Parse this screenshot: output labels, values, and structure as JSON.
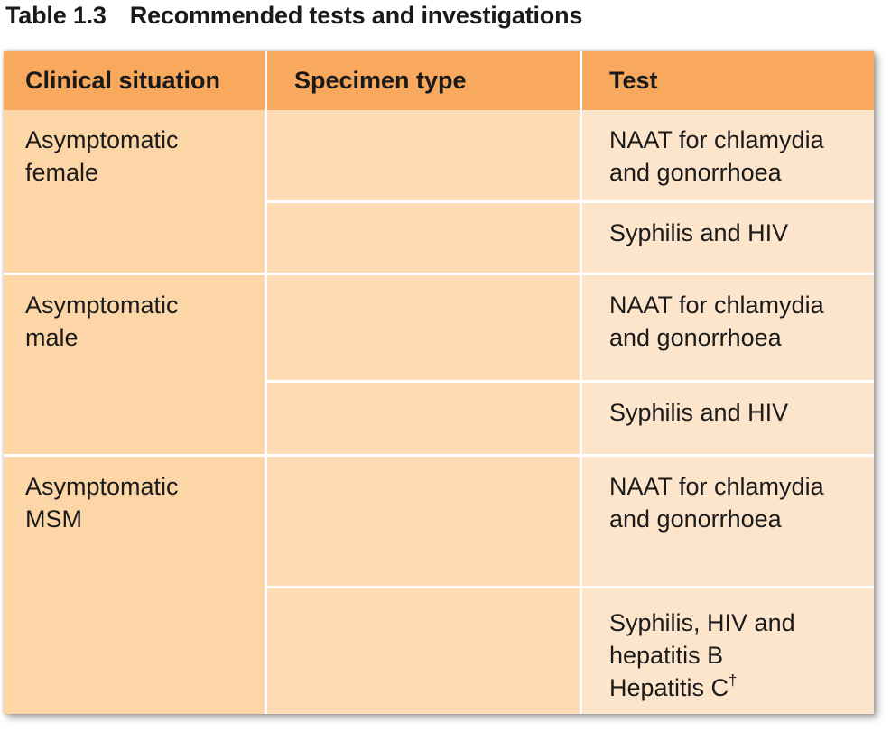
{
  "caption": {
    "number": "Table 1.3",
    "title": "Recommended tests and investigations"
  },
  "headers": {
    "clinical": "Clinical situation",
    "specimen": "Specimen type",
    "test": "Test"
  },
  "groups": [
    {
      "clinical_line1": "Asymptomatic",
      "clinical_line2": "female",
      "rows": [
        {
          "specimen": "",
          "test_line1": "NAAT for chlamydia",
          "test_line2": "and gonorrhoea"
        },
        {
          "specimen": "",
          "test_line1": "Syphilis and HIV"
        }
      ]
    },
    {
      "clinical_line1": "Asymptomatic",
      "clinical_line2": "male",
      "rows": [
        {
          "specimen": "",
          "test_line1": "NAAT for chlamydia",
          "test_line2": "and gonorrhoea"
        },
        {
          "specimen": "",
          "test_line1": "Syphilis and HIV"
        }
      ]
    },
    {
      "clinical_line1": "Asymptomatic",
      "clinical_line2": "MSM",
      "rows": [
        {
          "specimen": "",
          "test_line1": "NAAT for chlamydia",
          "test_line2": "and gonorrhoea"
        },
        {
          "specimen": "",
          "test_line1": "Syphilis, HIV and",
          "test_line2": "hepatitis B",
          "test_line3": "Hepatitis C",
          "test_line3_mark": "†"
        }
      ]
    }
  ],
  "colors": {
    "header": "#f8a95e",
    "clinical_column": "#fdd6a8",
    "specimen_column": "#fedbb5",
    "test_column": "#fde5cc",
    "separator": "#ffffff"
  }
}
